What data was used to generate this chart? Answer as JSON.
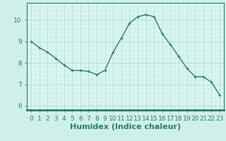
{
  "x": [
    0,
    1,
    2,
    3,
    4,
    5,
    6,
    7,
    8,
    9,
    10,
    11,
    12,
    13,
    14,
    15,
    16,
    17,
    18,
    19,
    20,
    21,
    22,
    23
  ],
  "y": [
    9.0,
    8.7,
    8.5,
    8.2,
    7.9,
    7.65,
    7.65,
    7.6,
    7.45,
    7.65,
    8.5,
    9.15,
    9.85,
    10.15,
    10.25,
    10.15,
    9.35,
    8.85,
    8.3,
    7.75,
    7.35,
    7.35,
    7.1,
    6.5
  ],
  "xlabel": "Humidex (Indice chaleur)",
  "ylim": [
    5.8,
    10.8
  ],
  "xlim": [
    -0.5,
    23.5
  ],
  "line_color": "#2d7a6e",
  "bg_color": "#cff0ea",
  "plot_bg_color": "#d9f5f0",
  "grid_color_major": "#b0ddd6",
  "grid_color_minor": "#c5ece6",
  "axis_bar_color": "#2d7a6e",
  "tick_color": "#2d7a6e",
  "yticks": [
    6,
    7,
    8,
    9,
    10
  ],
  "xticks": [
    0,
    1,
    2,
    3,
    4,
    5,
    6,
    7,
    8,
    9,
    10,
    11,
    12,
    13,
    14,
    15,
    16,
    17,
    18,
    19,
    20,
    21,
    22,
    23
  ],
  "marker": "+",
  "marker_size": 3,
  "line_width": 1.0,
  "xlabel_fontsize": 8,
  "tick_fontsize": 6.5,
  "label_color": "#2d7a6e"
}
